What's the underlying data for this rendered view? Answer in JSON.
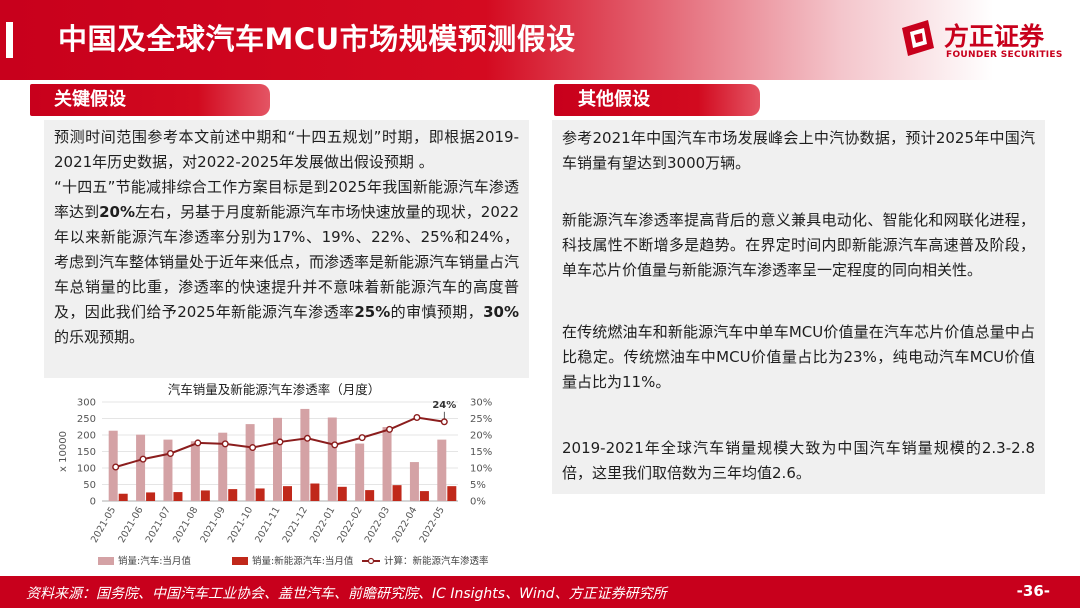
{
  "header": {
    "title": "中国及全球汽车MCU市场规模预测假设",
    "logo_cn": "方正证券",
    "logo_en": "FOUNDER SECURITIES"
  },
  "left": {
    "tag": "关键假设",
    "p1": "预测时间范围参考本文前述中期和“十四五规划”时期，即根据2019-2021年历史数据，对2022-2025年发展做出假设预期 。",
    "p2a": "“十四五”节能减排综合工作方案目标是到2025年我国新能源汽车渗透率达到",
    "p2b": "20%",
    "p2c": "左右，另基于月度新能源汽车市场快速放量的现状，2022年以来新能源汽车渗透率分别为17%、19%、22%、25%和24%，考虑到汽车整体销量处于近年来低点，而渗透率是新能源汽车销量占汽车总销量的比重，渗透率的快速提升并不意味着新能源汽车的高度普及，因此我们给予2025年新能源汽车渗透率",
    "p2d": "25%",
    "p2e": "的审慎预期，",
    "p2f": "30%",
    "p2g": "的乐观预期。"
  },
  "right": {
    "tag": "其他假设",
    "p1": "参考2021年中国汽车市场发展峰会上中汽协数据，预计2025年中国汽车销量有望达到3000万辆。",
    "p2": "新能源汽车渗透率提高背后的意义兼具电动化、智能化和网联化进程，科技属性不断增多是趋势。在界定时间内即新能源汽车高速普及阶段，单车芯片价值量与新能源汽车渗透率呈一定程度的同向相关性。",
    "p3": "在传统燃油车和新能源汽车中单车MCU价值量在汽车芯片价值总量中占比稳定。传统燃油车中MCU价值量占比为23%，纯电动汽车MCU价值量占比为11%。",
    "p4": "2019-2021年全球汽车销量规模大致为中国汽车销量规模的2.3-2.8倍，这里我们取倍数为三年均值2.6。"
  },
  "chart_data": {
    "type": "bar",
    "title": "汽车销量及新能源汽车渗透率（月度）",
    "ylabel": "x 10000",
    "categories": [
      "2021-05",
      "2021-06",
      "2021-07",
      "2021-08",
      "2021-09",
      "2021-10",
      "2021-11",
      "2021-12",
      "2022-01",
      "2022-02",
      "2022-03",
      "2022-04",
      "2022-05"
    ],
    "ylim": [
      0,
      300
    ],
    "y_ticks": [
      "0",
      "50",
      "100",
      "150",
      "200",
      "250",
      "300"
    ],
    "y2lim": [
      0,
      30
    ],
    "y2_ticks": [
      "0%",
      "5%",
      "10%",
      "15%",
      "20%",
      "25%",
      "30%"
    ],
    "series": [
      {
        "name": "销量:汽车:当月值",
        "type": "bar",
        "color": "#d4a2a5",
        "values": [
          213,
          201,
          186,
          181,
          207,
          233,
          252,
          279,
          253,
          174,
          224,
          118,
          186
        ]
      },
      {
        "name": "销量:新能源汽车:当月值",
        "type": "bar",
        "color": "#c0281a",
        "values": [
          22,
          26,
          27,
          32,
          36,
          38,
          45,
          53,
          43,
          33,
          48,
          30,
          45
        ]
      },
      {
        "name": "计算：新能源汽车渗透率",
        "type": "line",
        "axis": "right",
        "color": "#8b1d1d",
        "values": [
          10.3,
          12.7,
          14.4,
          17.6,
          17.3,
          16.2,
          17.9,
          19.0,
          17.0,
          19.2,
          21.7,
          25.3,
          24.0
        ]
      }
    ],
    "annotation": "24%",
    "legend": "bottom",
    "grid": true
  },
  "footer": {
    "source": "资料来源：国务院、中国汽车工业协会、盖世汽车、前瞻研究院、IC Insights、Wind、方正证券研究所",
    "page": "-36-"
  }
}
